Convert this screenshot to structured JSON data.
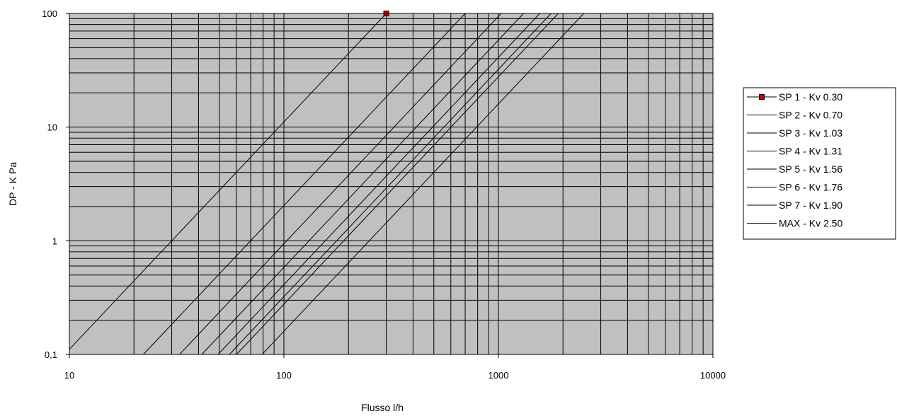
{
  "chart_data": {
    "type": "line",
    "xscale": "log",
    "yscale": "log",
    "xlim": [
      10,
      10000
    ],
    "ylim": [
      0.1,
      100
    ],
    "xlabel": "Flusso l/h",
    "ylabel": "DP - K Pa",
    "x_ticks": [
      "10",
      "100",
      "1000",
      "10000"
    ],
    "y_ticks": [
      "0,1",
      "1",
      "10",
      "100"
    ],
    "grid": "major and minor, both axes",
    "plot_background": "#c0c0c0",
    "legend_position": "right",
    "series": [
      {
        "name": "SP 1 - Kv  0.30",
        "kv": 0.3,
        "x": [
          10,
          300
        ],
        "y": [
          0.111,
          100
        ],
        "marker": "square",
        "marker_color": "#cc0000"
      },
      {
        "name": "SP 2 - Kv  0.70",
        "kv": 0.7,
        "x": [
          22.1,
          700
        ],
        "y": [
          0.1,
          100
        ]
      },
      {
        "name": "SP 3 - Kv  1.03",
        "kv": 1.03,
        "x": [
          32.6,
          1030
        ],
        "y": [
          0.1,
          100
        ]
      },
      {
        "name": "SP 4 - Kv  1.31",
        "kv": 1.31,
        "x": [
          41.4,
          1310
        ],
        "y": [
          0.1,
          100
        ]
      },
      {
        "name": "SP 5 - Kv  1.56",
        "kv": 1.56,
        "x": [
          49.3,
          1560
        ],
        "y": [
          0.1,
          100
        ]
      },
      {
        "name": "SP 6 - Kv  1.76",
        "kv": 1.76,
        "x": [
          55.7,
          1760
        ],
        "y": [
          0.1,
          100
        ]
      },
      {
        "name": "SP 7 - Kv  1.90",
        "kv": 1.9,
        "x": [
          60.1,
          1900
        ],
        "y": [
          0.1,
          100
        ]
      },
      {
        "name": "MAX - Kv  2.50",
        "kv": 2.5,
        "x": [
          79.1,
          2500
        ],
        "y": [
          0.1,
          100
        ]
      }
    ]
  }
}
